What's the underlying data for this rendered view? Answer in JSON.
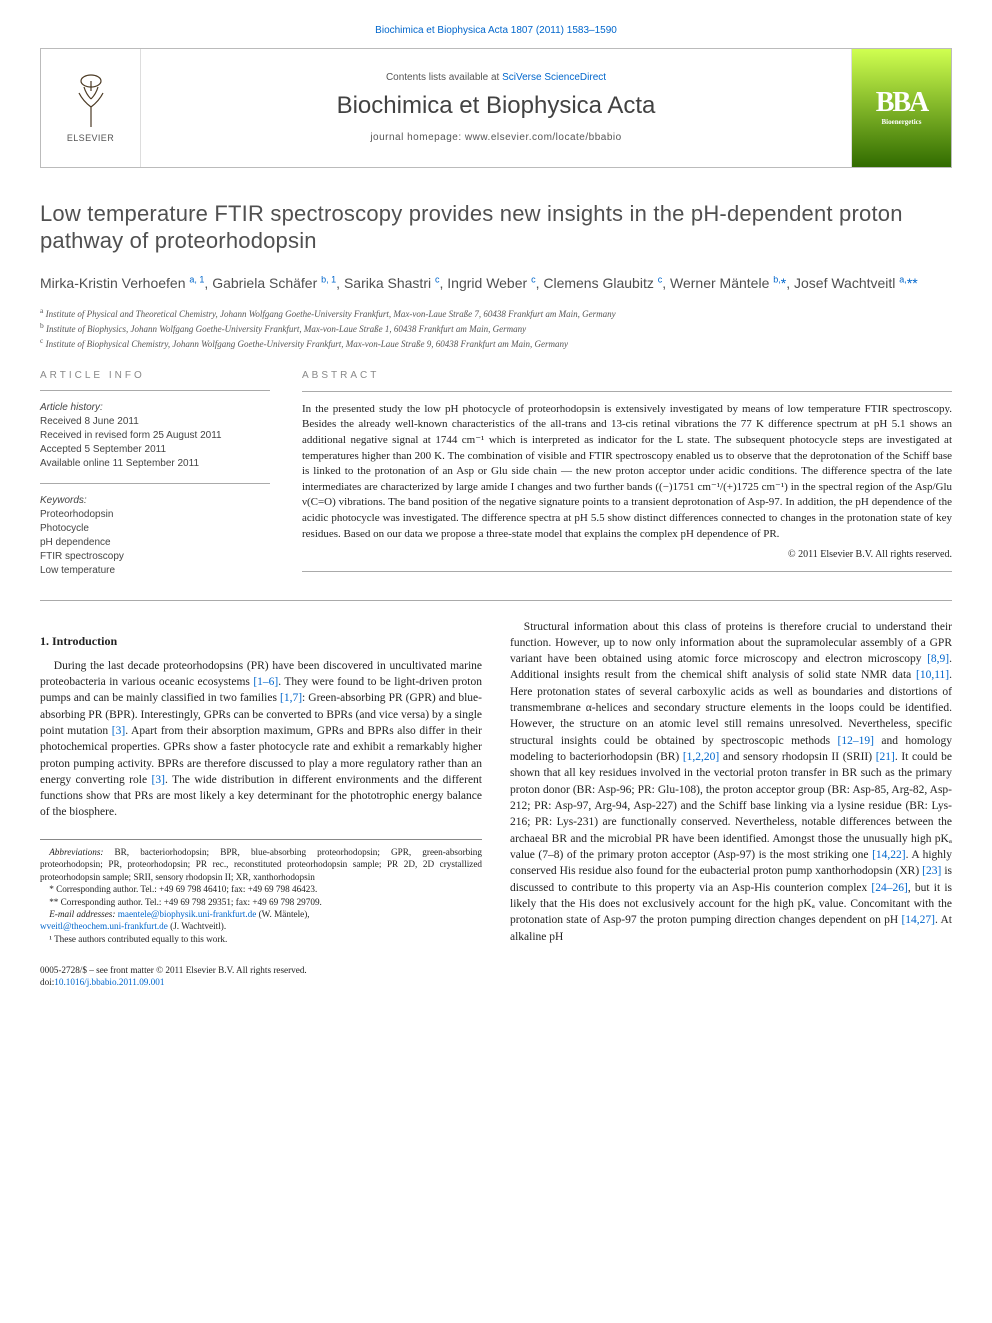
{
  "top_citation": {
    "prefix": "Biochimica et Biophysica Acta 1807 (2011) 1583–1590",
    "link_label": "Biochimica et Biophysica Acta 1807 (2011) 1583–1590"
  },
  "masthead": {
    "contents_prefix": "Contents lists available at ",
    "contents_link": "SciVerse ScienceDirect",
    "journal_name": "Biochimica et Biophysica Acta",
    "homepage_label": "journal homepage: www.elsevier.com/locate/bbabio",
    "publisher_label": "ELSEVIER",
    "right_logo_top": "BBA",
    "right_logo_sub": "Bioenergetics"
  },
  "article": {
    "title": "Low temperature FTIR spectroscopy provides new insights in the pH-dependent proton pathway of proteorhodopsin",
    "authors_html": "Mirka-Kristin Verhoefen <sup>a, 1</sup>, Gabriela Schäfer <sup>b, 1</sup>, Sarika Shastri <sup>c</sup>, Ingrid Weber <sup>c</sup>, Clemens Glaubitz <sup>c</sup>, Werner Mäntele <sup>b,</sup><a>*</a>, Josef Wachtveitl <sup>a,</sup><a>**</a>",
    "affiliations": [
      {
        "sup": "a",
        "text": "Institute of Physical and Theoretical Chemistry, Johann Wolfgang Goethe-University Frankfurt, Max-von-Laue Straße 7, 60438 Frankfurt am Main, Germany"
      },
      {
        "sup": "b",
        "text": "Institute of Biophysics, Johann Wolfgang Goethe-University Frankfurt, Max-von-Laue Straße 1, 60438 Frankfurt am Main, Germany"
      },
      {
        "sup": "c",
        "text": "Institute of Biophysical Chemistry, Johann Wolfgang Goethe-University Frankfurt, Max-von-Laue Straße 9, 60438 Frankfurt am Main, Germany"
      }
    ]
  },
  "article_info": {
    "label": "ARTICLE INFO",
    "history_label": "Article history:",
    "history": [
      "Received 8 June 2011",
      "Received in revised form 25 August 2011",
      "Accepted 5 September 2011",
      "Available online 11 September 2011"
    ],
    "keywords_label": "Keywords:",
    "keywords": [
      "Proteorhodopsin",
      "Photocycle",
      "pH dependence",
      "FTIR spectroscopy",
      "Low temperature"
    ]
  },
  "abstract": {
    "label": "ABSTRACT",
    "text": "In the presented study the low pH photocycle of proteorhodopsin is extensively investigated by means of low temperature FTIR spectroscopy. Besides the already well-known characteristics of the all-trans and 13-cis retinal vibrations the 77 K difference spectrum at pH 5.1 shows an additional negative signal at 1744 cm⁻¹ which is interpreted as indicator for the L state. The subsequent photocycle steps are investigated at temperatures higher than 200 K. The combination of visible and FTIR spectroscopy enabled us to observe that the deprotonation of the Schiff base is linked to the protonation of an Asp or Glu side chain — the new proton acceptor under acidic conditions. The difference spectra of the late intermediates are characterized by large amide I changes and two further bands ((−)1751 cm⁻¹/(+)1725 cm⁻¹) in the spectral region of the Asp/Glu ν(C=O) vibrations. The band position of the negative signature points to a transient deprotonation of Asp-97. In addition, the pH dependence of the acidic photocycle was investigated. The difference spectra at pH 5.5 show distinct differences connected to changes in the protonation state of key residues. Based on our data we propose a three-state model that explains the complex pH dependence of PR.",
    "copyright": "© 2011 Elsevier B.V. All rights reserved."
  },
  "body": {
    "intro_heading": "1. Introduction",
    "p1_a": "During the last decade proteorhodopsins (PR) have been discovered in uncultivated marine proteobacteria in various oceanic ecosystems ",
    "p1_ref1": "[1–6]",
    "p1_b": ". They were found to be light-driven proton pumps and can be mainly classified in two families ",
    "p1_ref2": "[1,7]",
    "p1_c": ": Green-absorbing PR (GPR) and blue-absorbing PR (BPR). Interestingly, GPRs can be converted to BPRs (and vice versa) by a single point mutation ",
    "p1_ref3": "[3]",
    "p1_d": ". Apart from their absorption maximum, GPRs and BPRs also differ in their photochemical properties. GPRs show a faster photocycle rate and exhibit a remarkably higher proton pumping activity. BPRs are therefore discussed to play a more regulatory rather than an energy converting role ",
    "p1_ref4": "[3]",
    "p1_e": ". The wide distribution in different environments and the different functions show that PRs are most likely a key determinant for the phototrophic energy balance of the biosphere.",
    "p2_a": "Structural information about this class of proteins is therefore crucial to understand their function. However, up to now only information about the supramolecular assembly of a GPR variant have been obtained using atomic force microscopy and electron microscopy ",
    "p2_ref1": "[8,9]",
    "p2_b": ". Additional insights result from the chemical shift analysis of solid state NMR data ",
    "p2_ref2": "[10,11]",
    "p2_c": ". Here protonation states of several carboxylic acids as well as boundaries and distortions of transmembrane α-helices and secondary structure elements in the loops could be identified. However, the structure on an atomic level still remains unresolved. Nevertheless, specific structural insights could be obtained by spectroscopic methods ",
    "p2_ref3": "[12–19]",
    "p2_d": " and homology modeling to bacteriorhodopsin (BR) ",
    "p2_ref4": "[1,2,20]",
    "p2_e": " and sensory rhodopsin II (SRII) ",
    "p2_ref5": "[21]",
    "p2_f": ". It could be shown that all key residues involved in the vectorial proton transfer in BR such as the primary proton donor (BR: Asp-96; PR: Glu-108), the proton acceptor group (BR: Asp-85, Arg-82, Asp-212; PR: Asp-97, Arg-94, Asp-227) and the Schiff base linking via a lysine residue (BR: Lys-216; PR: Lys-231) are functionally conserved. Nevertheless, notable differences between the archaeal BR and the microbial PR have been identified. Amongst those the unusually high pKₐ value (7–8) of the primary proton acceptor (Asp-97) is the most striking one ",
    "p2_ref6": "[14,22]",
    "p2_g": ". A highly conserved His residue also found for the eubacterial proton pump xanthorhodopsin (XR) ",
    "p2_ref7": "[23]",
    "p2_h": " is discussed to contribute to this property via an Asp-His counterion complex ",
    "p2_ref8": "[24–26]",
    "p2_i": ", but it is likely that the His does not exclusively account for the high pKₐ value. Concomitant with the protonation state of Asp-97 the proton pumping direction changes dependent on pH ",
    "p2_ref9": "[14,27]",
    "p2_j": ". At alkaline pH"
  },
  "footnotes": {
    "abbrev_label": "Abbreviations:",
    "abbrev_text": " BR, bacteriorhodopsin; BPR, blue-absorbing proteorhodopsin; GPR, green-absorbing proteorhodopsin; PR, proteorhodopsin; PR rec., reconstituted proteorhodopsin sample; PR 2D, 2D crystallized proteorhodopsin sample; SRII, sensory rhodopsin II; XR, xanthorhodopsin",
    "corr1": "* Corresponding author. Tel.: +49 69 798 46410; fax: +49 69 798 46423.",
    "corr2": "** Corresponding author. Tel.: +49 69 798 29351; fax: +49 69 798 29709.",
    "email_label": "E-mail addresses: ",
    "email1": "maentele@biophysik.uni-frankfurt.de",
    "email1_who": " (W. Mäntele),",
    "email2": "wveitl@theochem.uni-frankfurt.de",
    "email2_who": " (J. Wachtveitl).",
    "note1": "¹ These authors contributed equally to this work."
  },
  "footer": {
    "line1": "0005-2728/$ – see front matter © 2011 Elsevier B.V. All rights reserved.",
    "doi_label": "doi:",
    "doi": "10.1016/j.bbabio.2011.09.001"
  },
  "colors": {
    "link": "#0066cc",
    "text": "#222222",
    "muted": "#555555",
    "rule": "#aaaaaa",
    "elsevier": "#e77a1e"
  }
}
